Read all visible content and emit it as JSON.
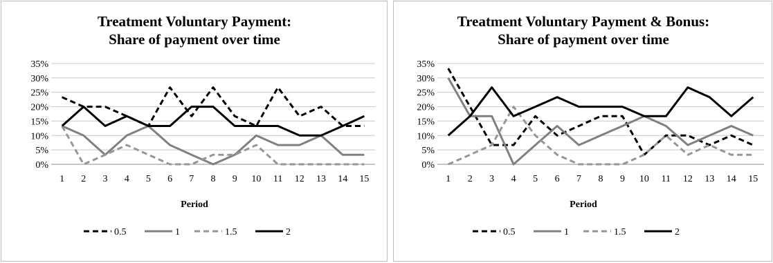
{
  "chart_data": [
    {
      "type": "line",
      "title_lines": [
        "Treatment Voluntary Payment:",
        "Share of payment over time"
      ],
      "xlabel": "Period",
      "ylabel": "",
      "categories": [
        "1",
        "2",
        "3",
        "4",
        "5",
        "6",
        "7",
        "8",
        "9",
        "10",
        "11",
        "12",
        "13",
        "14",
        "15"
      ],
      "ylim": [
        0,
        35
      ],
      "yticks": [
        "0%",
        "5%",
        "10%",
        "15%",
        "20%",
        "25%",
        "30%",
        "35%"
      ],
      "grid": true,
      "legend_position": "bottom",
      "series": [
        {
          "name": "0.5",
          "color": "#000000",
          "style": "dashed",
          "values": [
            23.3,
            20,
            20,
            16.7,
            13.3,
            26.7,
            16.7,
            26.7,
            16.7,
            13.3,
            26.7,
            16.7,
            20,
            13.3,
            13.3
          ]
        },
        {
          "name": "1",
          "color": "#808080",
          "style": "solid",
          "values": [
            13.3,
            10,
            3.3,
            10,
            13.3,
            6.7,
            3.3,
            0,
            3.3,
            10,
            6.7,
            6.7,
            10,
            3.3,
            3.3
          ]
        },
        {
          "name": "1.5",
          "color": "#969696",
          "style": "dashed",
          "values": [
            13.3,
            0,
            3.3,
            6.7,
            3.3,
            0,
            0,
            3.3,
            3.3,
            6.7,
            0,
            0,
            0,
            0,
            0
          ]
        },
        {
          "name": "2",
          "color": "#000000",
          "style": "solid",
          "values": [
            13.3,
            20,
            13.3,
            16.7,
            13.3,
            13.3,
            20,
            20,
            13.3,
            13.3,
            13.3,
            10,
            10,
            13.3,
            16.7
          ]
        }
      ]
    },
    {
      "type": "line",
      "title_lines": [
        "Treatment Voluntary Payment & Bonus:",
        "Share of payment over time"
      ],
      "xlabel": "Period",
      "ylabel": "",
      "categories": [
        "1",
        "2",
        "3",
        "4",
        "5",
        "6",
        "7",
        "8",
        "9",
        "10",
        "11",
        "12",
        "13",
        "14",
        "15"
      ],
      "ylim": [
        0,
        35
      ],
      "yticks": [
        "0%",
        "5%",
        "10%",
        "15%",
        "20%",
        "25%",
        "30%",
        "35%"
      ],
      "grid": true,
      "legend_position": "bottom",
      "series": [
        {
          "name": "0.5",
          "color": "#000000",
          "style": "dashed",
          "values": [
            33.3,
            20,
            6.7,
            6.7,
            16.7,
            10,
            13.3,
            16.7,
            16.7,
            3.3,
            10,
            10,
            6.7,
            10,
            6.7
          ]
        },
        {
          "name": "1",
          "color": "#808080",
          "style": "solid",
          "values": [
            30,
            16.7,
            16.7,
            0,
            6.7,
            13.3,
            6.7,
            10,
            13.3,
            16.7,
            13.3,
            6.7,
            10,
            13.3,
            10
          ]
        },
        {
          "name": "1.5",
          "color": "#969696",
          "style": "dashed",
          "values": [
            0,
            3.3,
            6.7,
            20,
            10,
            3.3,
            0,
            0,
            0,
            3.3,
            10,
            3.3,
            6.7,
            3.3,
            3.3
          ]
        },
        {
          "name": "2",
          "color": "#000000",
          "style": "solid",
          "values": [
            10,
            16.7,
            26.7,
            16.7,
            20,
            23.3,
            20,
            20,
            20,
            16.7,
            16.7,
            26.7,
            23.3,
            16.7,
            23.3
          ]
        }
      ]
    }
  ]
}
